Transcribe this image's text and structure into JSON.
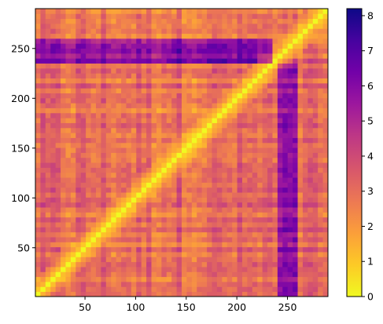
{
  "chart_data": {
    "type": "heatmap",
    "title": "",
    "xlabel": "",
    "ylabel": "",
    "x_range": [
      1,
      290
    ],
    "y_range": [
      1,
      290
    ],
    "y_origin": "bottom",
    "grid": false,
    "x_ticks": [
      50,
      100,
      150,
      200,
      250
    ],
    "y_ticks": [
      50,
      100,
      150,
      200,
      250
    ],
    "x_tick_labels": [
      "50",
      "100",
      "150",
      "200",
      "250"
    ],
    "y_tick_labels": [
      "50",
      "100",
      "150",
      "200",
      "250"
    ],
    "colormap": "plasma_r",
    "colorbar": {
      "min": 0,
      "max": 8.2,
      "ticks": [
        0,
        1,
        2,
        3,
        4,
        5,
        6,
        7,
        8
      ],
      "tick_labels": [
        "0",
        "1",
        "2",
        "3",
        "4",
        "5",
        "6",
        "7",
        "8"
      ],
      "colors": [
        "#f0f921",
        "#fdca26",
        "#fb9f3a",
        "#ed7953",
        "#d8576b",
        "#bd3786",
        "#9c179e",
        "#7201a8",
        "#46039f",
        "#0d0887"
      ]
    },
    "matrix_description_values": {
      "diagonal_value": 0,
      "typical_value": 3.5,
      "high_region_rows": [
        235,
        255
      ],
      "high_region_cols": [
        235,
        260
      ],
      "max_value": 8.2
    }
  }
}
